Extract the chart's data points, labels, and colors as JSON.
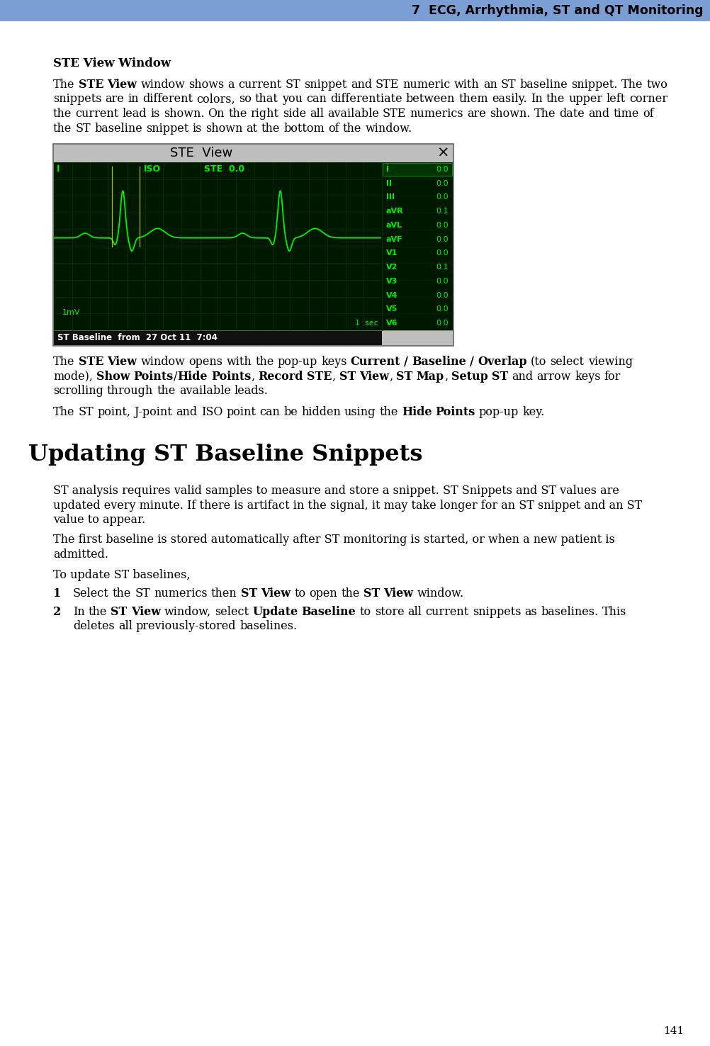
{
  "page_title": "7  ECG, Arrhythmia, ST and QT Monitoring",
  "page_number": "141",
  "header_color": "#7B9FD4",
  "bg_color": "#ffffff",
  "section_heading": "STE View Window",
  "para1_parts": [
    {
      "text": "The ",
      "bold": false
    },
    {
      "text": "STE View",
      "bold": true
    },
    {
      "text": " window shows a current ST snippet and STE numeric with an ST baseline snippet. The two snippets are in different colors, so that you can differentiate between them easily. In the upper left corner the current lead is shown. On the right side all available STE numerics are shown. The date and time of the ST baseline snippet is shown at the bottom of the window.",
      "bold": false
    }
  ],
  "para2_parts": [
    {
      "text": "The ",
      "bold": false
    },
    {
      "text": "STE View",
      "bold": true
    },
    {
      "text": " window opens with the pop-up keys ",
      "bold": false
    },
    {
      "text": "Current / Baseline / Overlap",
      "bold": true
    },
    {
      "text": " (to select viewing mode), ",
      "bold": false
    },
    {
      "text": "Show Points",
      "bold": true
    },
    {
      "text": "/",
      "bold": false
    },
    {
      "text": "Hide Points",
      "bold": true
    },
    {
      "text": ", ",
      "bold": false
    },
    {
      "text": "Record STE",
      "bold": true
    },
    {
      "text": ", ",
      "bold": false
    },
    {
      "text": "ST View",
      "bold": true
    },
    {
      "text": ", ",
      "bold": false
    },
    {
      "text": "ST Map",
      "bold": true
    },
    {
      "text": ", ",
      "bold": false
    },
    {
      "text": "Setup ST",
      "bold": true
    },
    {
      "text": " and arrow keys for scrolling through the available leads.",
      "bold": false
    }
  ],
  "para3_parts": [
    {
      "text": "The ST point, J-point and ISO point can be hidden using the ",
      "bold": false
    },
    {
      "text": "Hide Points",
      "bold": true
    },
    {
      "text": " pop-up key.",
      "bold": false
    }
  ],
  "section2_heading": "Updating ST Baseline Snippets",
  "para4_lines": [
    "ST analysis requires valid samples to measure and store a snippet. ST Snippets and ST values are",
    "updated every minute. If there is artifact in the signal, it may take longer for an ST snippet and an ST",
    "value to appear."
  ],
  "para5_lines": [
    "The first baseline is stored automatically after ST monitoring is started, or when a new patient is",
    "admitted."
  ],
  "para6": "To update ST baselines,",
  "step1_parts": [
    {
      "text": "Select the ST numerics then ",
      "bold": false
    },
    {
      "text": "ST View",
      "bold": true
    },
    {
      "text": " to open the ",
      "bold": false
    },
    {
      "text": "ST View",
      "bold": true
    },
    {
      "text": " window.",
      "bold": false
    }
  ],
  "step2_parts": [
    {
      "text": "In the ",
      "bold": false
    },
    {
      "text": "ST View",
      "bold": true
    },
    {
      "text": " window, select ",
      "bold": false
    },
    {
      "text": "Update Baseline",
      "bold": true
    },
    {
      "text": " to store all current snippets as baselines. This deletes all previously-stored baselines.",
      "bold": false
    }
  ],
  "step2_line2": "deletes all previously-stored baselines.",
  "ecg_bg": "#001800",
  "ecg_grid_color": "#003800",
  "ecg_signal_color": "#00EE00",
  "ecg_text_color": "#00EE00",
  "ecg_title": "STE  View",
  "ecg_title_bg": "#BEBEBE",
  "ecg_panel_border": "#888888",
  "ecg_baseline_bar": "#222222",
  "ste_leads": [
    "I",
    "II",
    "III",
    "aVR",
    "aVL",
    "aVF",
    "V1",
    "V2",
    "V3",
    "V4",
    "V5",
    "V6"
  ],
  "ste_values": [
    "0.0",
    "0.0",
    "0.0",
    "0.1",
    "0.0",
    "0.0",
    "0.0",
    "0.1",
    "0.0",
    "0.0",
    "0.0",
    "0.0"
  ],
  "ecg_baseline_text": "ST Baseline  from  27 Oct 11  7:04",
  "ecg_lead_label": "I",
  "ecg_iso_label": "ISO",
  "ecg_ste_label": "STE  0.0",
  "ecg_mv_label": "1mV",
  "ecg_sec_label": "1  sec"
}
